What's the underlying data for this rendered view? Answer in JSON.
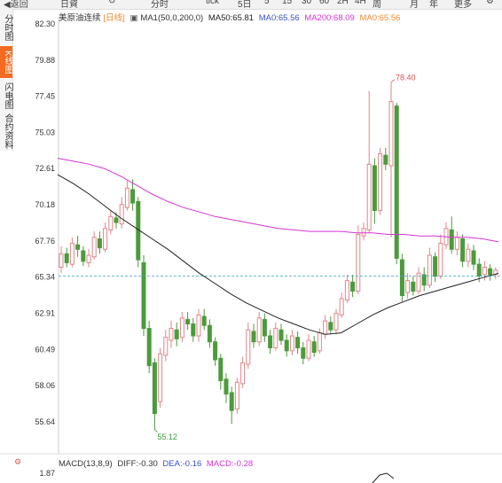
{
  "toolbar": {
    "items": [
      "◀返回",
      "日資",
      "↻",
      "分时",
      "tick",
      "5日",
      "5",
      "15",
      "30",
      "60",
      "2H",
      "4H",
      "周",
      "月",
      "年",
      "更多",
      "⚙"
    ]
  },
  "sidebar": {
    "tabs": [
      {
        "label": "分时图",
        "active": false
      },
      {
        "label": "K线图",
        "active": true
      },
      {
        "label": "闪电图",
        "active": false
      },
      {
        "label": "合约资料",
        "active": false
      }
    ]
  },
  "legend": {
    "symbol": "美原油连续",
    "period": "[日线]",
    "ma_params": "MA1(50,0,200,0)",
    "ma50": "MA50:65.81",
    "ma0a": "MA0:65.56",
    "ma200": "MA200:68.09",
    "ma0b": "MA0:65.56"
  },
  "macd": {
    "title": "MACD(13,8,9)",
    "diff": "DIFF:-0.30",
    "dea": "DEA:-0.16",
    "macd": "MACD:-0.28",
    "axis_label": "1.87"
  },
  "colors": {
    "up": "#e0868a",
    "down": "#4c9a3c",
    "ma50": "#222222",
    "ma200": "#d633d6",
    "ma0": "#f28a30",
    "current_price": "#3aa0c8",
    "high_label": "#d9534f",
    "low_label": "#3a9a3a"
  },
  "chart_data": {
    "type": "candlestick",
    "ylim": [
      54.2,
      83.0
    ],
    "yticks": [
      "82.30",
      "79.88",
      "77.45",
      "75.03",
      "72.61",
      "70.18",
      "67.76",
      "65.34",
      "62.91",
      "60.49",
      "58.06",
      "55.64"
    ],
    "high_annotation": "78.40",
    "low_annotation": "55.12",
    "current_price": 65.4,
    "ma50": [
      72.2,
      71.6,
      70.9,
      70.1,
      69.3,
      68.6,
      67.9,
      67.2,
      66.4,
      65.6,
      64.9,
      64.2,
      63.6,
      63.1,
      62.6,
      62.2,
      61.8,
      61.5,
      61.6,
      62.2,
      62.8,
      63.3,
      63.7,
      64.1,
      64.4,
      64.7,
      65.0,
      65.3,
      65.6
    ],
    "ma200": [
      73.3,
      73.1,
      72.9,
      72.6,
      72.1,
      71.5,
      70.9,
      70.4,
      70.0,
      69.7,
      69.4,
      69.2,
      69.0,
      68.8,
      68.6,
      68.5,
      68.4,
      68.4,
      68.4,
      68.3,
      68.3,
      68.2,
      68.2,
      68.1,
      68.1,
      68.0,
      68.0,
      67.9,
      67.7
    ],
    "candles": [
      [
        66.0,
        66.9,
        67.4,
        65.6
      ],
      [
        66.9,
        66.3,
        67.3,
        66.0
      ],
      [
        66.2,
        67.6,
        68.0,
        66.0
      ],
      [
        67.5,
        67.2,
        68.1,
        66.7
      ],
      [
        67.1,
        66.4,
        67.4,
        66.1
      ],
      [
        66.3,
        66.8,
        67.2,
        66.0
      ],
      [
        66.7,
        68.0,
        68.4,
        66.5
      ],
      [
        67.9,
        67.3,
        68.4,
        66.9
      ],
      [
        67.2,
        68.6,
        69.0,
        67.0
      ],
      [
        68.5,
        69.4,
        69.8,
        68.2
      ],
      [
        69.3,
        69.0,
        69.7,
        68.6
      ],
      [
        68.9,
        70.2,
        70.7,
        68.6
      ],
      [
        70.0,
        71.3,
        71.8,
        69.8
      ],
      [
        71.2,
        70.3,
        71.9,
        69.8
      ],
      [
        70.4,
        66.5,
        70.7,
        66.0
      ],
      [
        66.3,
        61.9,
        66.8,
        61.4
      ],
      [
        61.9,
        59.4,
        62.4,
        58.9
      ],
      [
        59.6,
        56.2,
        59.9,
        55.1
      ],
      [
        57.0,
        60.2,
        60.6,
        56.6
      ],
      [
        60.1,
        61.3,
        61.8,
        59.7
      ],
      [
        61.1,
        61.9,
        62.4,
        60.6
      ],
      [
        61.8,
        61.2,
        62.3,
        60.7
      ],
      [
        61.3,
        62.6,
        63.0,
        61.0
      ],
      [
        62.5,
        62.2,
        63.0,
        61.8
      ],
      [
        62.2,
        61.4,
        62.6,
        61.0
      ],
      [
        61.4,
        62.8,
        63.2,
        61.0
      ],
      [
        62.7,
        62.1,
        63.2,
        61.8
      ],
      [
        62.1,
        61.0,
        62.5,
        60.6
      ],
      [
        61.0,
        59.8,
        61.3,
        59.4
      ],
      [
        59.9,
        58.4,
        60.2,
        57.8
      ],
      [
        58.5,
        57.5,
        58.9,
        56.9
      ],
      [
        57.6,
        56.4,
        58.0,
        55.5
      ],
      [
        56.5,
        58.3,
        58.6,
        56.2
      ],
      [
        58.2,
        59.6,
        60.0,
        57.9
      ],
      [
        59.5,
        61.8,
        62.3,
        59.2
      ],
      [
        61.7,
        61.0,
        62.2,
        60.6
      ],
      [
        61.0,
        62.6,
        63.0,
        60.7
      ],
      [
        62.5,
        61.4,
        62.9,
        61.0
      ],
      [
        61.4,
        60.6,
        61.8,
        60.2
      ],
      [
        60.6,
        61.9,
        62.3,
        60.4
      ],
      [
        61.8,
        61.1,
        62.2,
        60.8
      ],
      [
        61.1,
        60.4,
        61.5,
        60.0
      ],
      [
        60.4,
        61.4,
        61.8,
        60.1
      ],
      [
        61.3,
        60.6,
        61.7,
        60.2
      ],
      [
        60.6,
        59.9,
        61.0,
        59.5
      ],
      [
        59.9,
        61.1,
        61.5,
        59.7
      ],
      [
        61.0,
        60.3,
        61.4,
        60.0
      ],
      [
        60.4,
        61.6,
        61.9,
        60.2
      ],
      [
        61.5,
        62.4,
        62.8,
        61.2
      ],
      [
        62.3,
        61.8,
        62.7,
        61.5
      ],
      [
        61.8,
        62.9,
        63.2,
        61.5
      ],
      [
        62.8,
        63.9,
        64.3,
        62.6
      ],
      [
        63.8,
        65.1,
        65.5,
        63.6
      ],
      [
        65.0,
        64.4,
        65.5,
        64.0
      ],
      [
        64.4,
        68.2,
        68.8,
        64.2
      ],
      [
        68.1,
        68.6,
        69.0,
        67.8
      ],
      [
        68.5,
        72.9,
        77.8,
        68.3
      ],
      [
        72.8,
        69.8,
        73.3,
        68.9
      ],
      [
        69.8,
        73.6,
        74.0,
        69.5
      ],
      [
        73.5,
        72.9,
        74.0,
        72.5
      ],
      [
        72.8,
        77.1,
        78.4,
        68.0
      ],
      [
        76.8,
        66.6,
        77.0,
        66.2
      ],
      [
        66.5,
        64.1,
        66.9,
        63.7
      ],
      [
        64.3,
        65.1,
        65.6,
        63.9
      ],
      [
        65.0,
        64.4,
        65.4,
        64.1
      ],
      [
        64.4,
        65.6,
        66.0,
        64.2
      ],
      [
        65.5,
        64.8,
        66.0,
        64.4
      ],
      [
        64.8,
        66.8,
        67.3,
        64.6
      ],
      [
        66.7,
        65.4,
        67.0,
        65.0
      ],
      [
        65.4,
        67.6,
        68.2,
        65.2
      ],
      [
        67.5,
        68.6,
        69.0,
        67.2
      ],
      [
        68.5,
        67.2,
        69.4,
        66.9
      ],
      [
        67.2,
        68.0,
        68.4,
        66.8
      ],
      [
        67.9,
        66.4,
        68.2,
        66.0
      ],
      [
        66.4,
        67.2,
        67.6,
        66.0
      ],
      [
        67.1,
        66.2,
        67.5,
        65.8
      ],
      [
        66.2,
        65.4,
        66.6,
        65.0
      ],
      [
        65.5,
        66.0,
        66.4,
        65.1
      ],
      [
        65.9,
        65.5,
        66.2,
        65.1
      ],
      [
        65.5,
        65.8,
        66.0,
        65.2
      ]
    ]
  }
}
